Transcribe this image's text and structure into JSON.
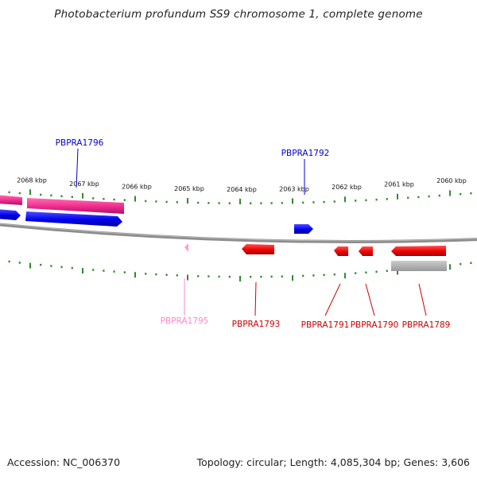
{
  "title": "Photobacterium profundum SS9 chromosome 1, complete genome",
  "footer": {
    "accession": "Accession: NC_006370",
    "summary": "Topology: circular; Length: 4,085,304 bp; Genes: 3,606"
  },
  "colors": {
    "forward_cds": "#0000ee",
    "reverse_cds": "#ee0000",
    "pseudo_pink": "#ff69b4",
    "rna_magenta": "#ee2b8c",
    "other_gray": "#aaaaaa",
    "backbone": "#888888",
    "tick": "#2e8b2e"
  },
  "scale": {
    "kbp_labels": [
      "2068 kbp",
      "2067 kbp",
      "2066 kbp",
      "2065 kbp",
      "2064 kbp",
      "2063 kbp",
      "2062 kbp",
      "2061 kbp",
      "2060 kbp"
    ]
  },
  "gene_labels": [
    {
      "text": "PBPRA1796",
      "color": "#0000cc"
    },
    {
      "text": "PBPRA1792",
      "color": "#0000cc"
    },
    {
      "text": "PBPRA1795",
      "color": "#ff88c8"
    },
    {
      "text": "PBPRA1793",
      "color": "#cc0000"
    },
    {
      "text": "PBPRA1791",
      "color": "#cc0000"
    },
    {
      "text": "PBPRA1790",
      "color": "#cc0000"
    },
    {
      "text": "PBPRA1789",
      "color": "#cc0000"
    }
  ]
}
